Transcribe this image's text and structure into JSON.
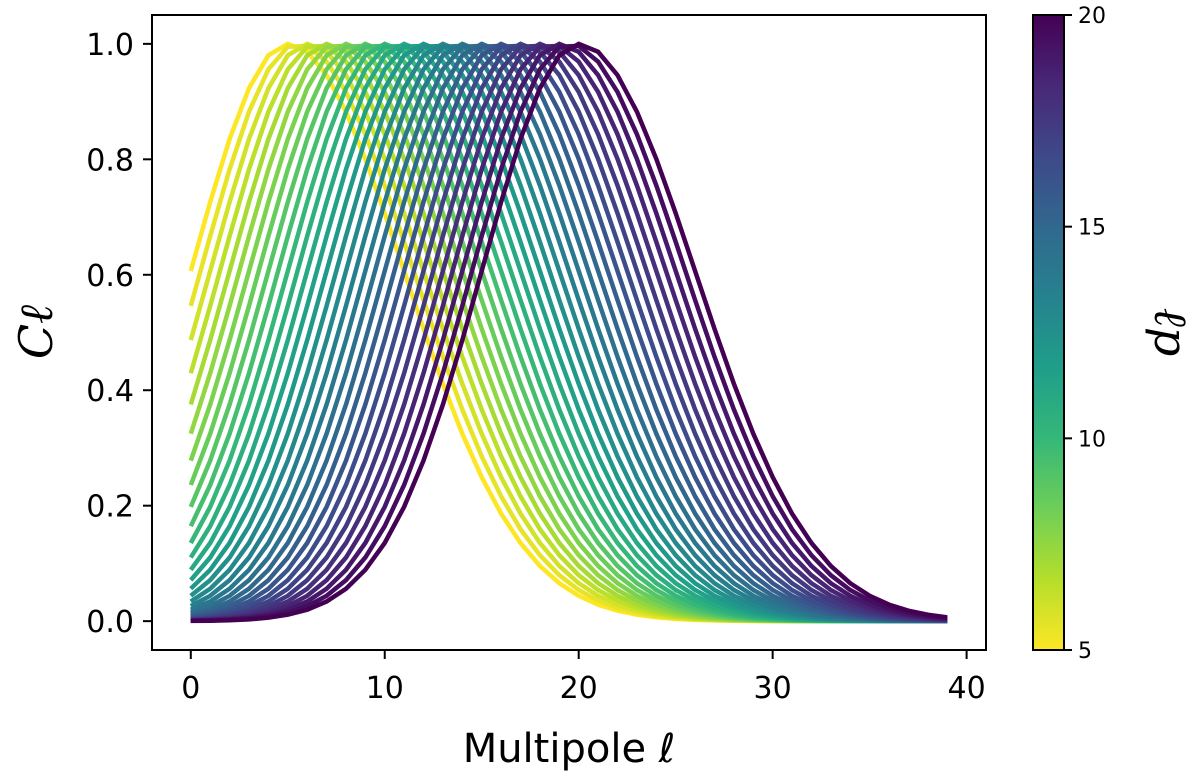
{
  "chart_data": {
    "type": "line",
    "xlabel": "Multipole ℓ",
    "ylabel": "Cℓ",
    "colorbar_label": "ℓp",
    "xlim": [
      -2,
      41
    ],
    "ylim": [
      -0.05,
      1.05
    ],
    "xticks": [
      0,
      10,
      20,
      30,
      40
    ],
    "yticks": [
      0.0,
      0.2,
      0.4,
      0.6,
      0.8,
      1.0
    ],
    "ytick_labels": [
      "0.0",
      "0.2",
      "0.4",
      "0.6",
      "0.8",
      "1.0"
    ],
    "colormap": "viridis (reversed: yellow at ℓp=5, dark purple at ℓp=20)",
    "colormap_stops": [
      "#fde725",
      "#b5de2b",
      "#6ece58",
      "#35b779",
      "#1f9e89",
      "#26828e",
      "#31688e",
      "#3e4989",
      "#482878",
      "#440154"
    ],
    "colorbar_range": [
      5,
      20
    ],
    "colorbar_ticks": [
      5,
      10,
      15,
      20
    ],
    "x_range_of_curves": [
      0,
      39
    ],
    "series_count": 31,
    "series_lp_values": [
      5,
      5.5,
      6,
      6.5,
      7,
      7.5,
      8,
      8.5,
      9,
      9.5,
      10,
      10.5,
      11,
      11.5,
      12,
      12.5,
      13,
      13.5,
      14,
      14.5,
      15,
      15.5,
      16,
      16.5,
      17,
      17.5,
      18,
      18.5,
      19,
      19.5,
      20
    ],
    "curve_shape": "Gaussian-like bump peaking at 1.0 at ℓ = ℓp; left side width ≈ 5, right side width ≈ 6",
    "sample_values": {
      "lp_5": {
        "x": [
          0,
          5,
          10,
          15,
          20,
          25,
          30
        ],
        "y": [
          0.61,
          1.0,
          0.7,
          0.25,
          0.03,
          0.0,
          0.0
        ]
      },
      "lp_20": {
        "x": [
          0,
          10,
          15,
          20,
          25,
          30,
          35,
          39
        ],
        "y": [
          0.0,
          0.13,
          0.61,
          1.0,
          0.7,
          0.25,
          0.03,
          0.0
        ]
      }
    },
    "grid": false,
    "legend": "none (colorbar on right)"
  }
}
